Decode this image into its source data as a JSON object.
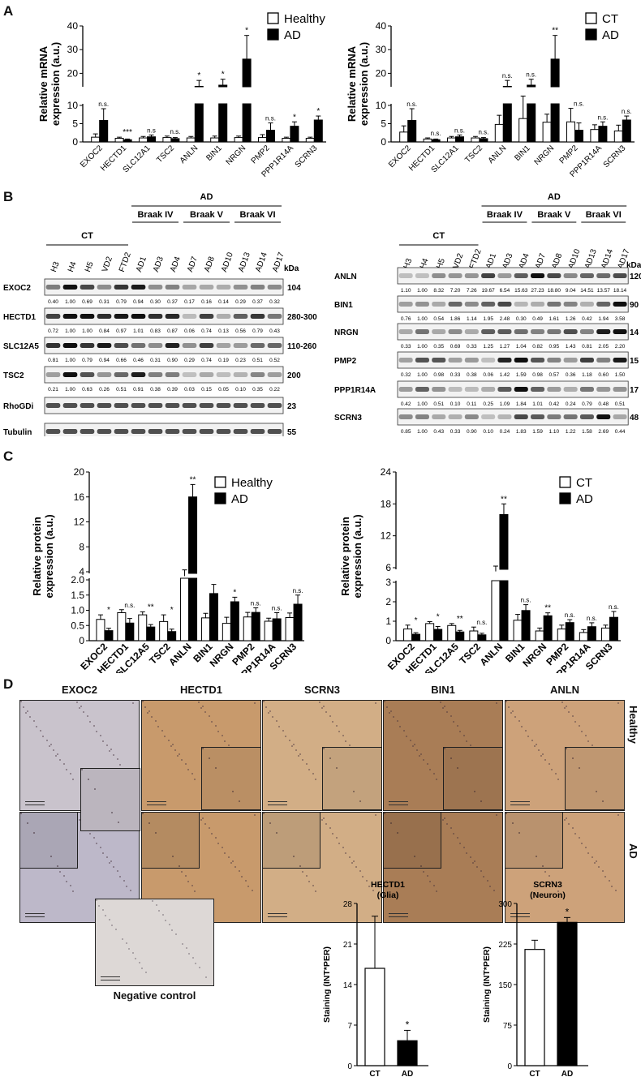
{
  "panels": {
    "A": "A",
    "B": "B",
    "C": "C",
    "D": "D"
  },
  "panelA_left": {
    "chart_data": {
      "type": "bar",
      "ylabel": "Relative mRNA expression (a.u.)",
      "yticks_low": [
        "0",
        "5",
        "10"
      ],
      "yticks_high": [
        "20",
        "30",
        "40"
      ],
      "categories": [
        "EXOC2",
        "HECTD1",
        "SLC12A1",
        "TSC2",
        "ANLN",
        "BIN1",
        "NRGN",
        "PMP2",
        "PPP1R14A",
        "SCRN3"
      ],
      "series": [
        {
          "name": "Healthy",
          "values": [
            1.3,
            1.0,
            1.1,
            1.2,
            1.1,
            1.1,
            1.2,
            1.2,
            1.0,
            1.0
          ],
          "errors": [
            0.9,
            0.3,
            0.4,
            0.4,
            0.4,
            0.5,
            0.4,
            0.8,
            0.3,
            0.3
          ]
        },
        {
          "name": "AD",
          "values": [
            5.9,
            0.6,
            1.4,
            0.9,
            14.5,
            15.0,
            26.0,
            3.2,
            4.3,
            6.0
          ],
          "errors": [
            3.2,
            0.2,
            0.5,
            0.3,
            2.5,
            2.5,
            10.0,
            2.0,
            1.2,
            1.1
          ]
        }
      ],
      "annotations": [
        "n.s.",
        "***",
        "n.s",
        "n.s.",
        "*",
        "*",
        "*",
        "n.s.",
        "*",
        "*"
      ]
    }
  },
  "panelA_right": {
    "chart_data": {
      "type": "bar",
      "ylabel": "Relative mRNA expression (a.u.)",
      "yticks_low": [
        "0",
        "5",
        "10"
      ],
      "yticks_high": [
        "20",
        "30",
        "40"
      ],
      "categories": [
        "EXOC2",
        "HECTD1",
        "SLC12A1",
        "TSC2",
        "ANLN",
        "BIN1",
        "NRGN",
        "PMP2",
        "PPP1R14A",
        "SCRN3"
      ],
      "series": [
        {
          "name": "CT",
          "values": [
            2.7,
            0.8,
            1.1,
            1.1,
            4.8,
            6.4,
            5.4,
            5.5,
            3.4,
            3.0
          ],
          "errors": [
            1.7,
            0.3,
            0.4,
            0.4,
            2.5,
            4.0,
            2.2,
            3.7,
            1.3,
            1.6
          ]
        },
        {
          "name": "AD",
          "values": [
            5.9,
            0.6,
            1.4,
            0.9,
            14.5,
            15.0,
            26.0,
            3.2,
            4.3,
            6.0
          ],
          "errors": [
            3.2,
            0.2,
            0.5,
            0.3,
            2.5,
            2.5,
            10.0,
            2.0,
            1.2,
            1.1
          ]
        }
      ],
      "annotations": [
        "n.s.",
        "n.s.",
        "n.s.",
        "n.s.",
        "n.s.",
        "n.s.",
        "**",
        "n.s.",
        "n.s.",
        "n.s."
      ]
    }
  },
  "panelB": {
    "group_ct": "CT",
    "group_ad": "AD",
    "braak": [
      "Braak IV",
      "Braak V",
      "Braak VI"
    ],
    "kda": "kDa",
    "left": {
      "lanes": [
        "H3",
        "H4",
        "H5",
        "VD2",
        "FTD2",
        "AD1",
        "AD3",
        "AD4",
        "AD7",
        "AD8",
        "AD10",
        "AD13",
        "AD14",
        "AD17"
      ],
      "blots": [
        {
          "name": "EXOC2",
          "kda": "104",
          "values": [
            "0.40",
            "1.00",
            "0.69",
            "0.31",
            "0.79",
            "0.94",
            "0.30",
            "0.37",
            "0.17",
            "0.16",
            "0.14",
            "0.29",
            "0.37",
            "0.32"
          ]
        },
        {
          "name": "HECTD1",
          "kda": "280-300",
          "values": [
            "0.72",
            "1.00",
            "1.00",
            "0.84",
            "0.97",
            "1.01",
            "0.83",
            "0.87",
            "0.06",
            "0.74",
            "0.13",
            "0.56",
            "0.79",
            "0.43"
          ]
        },
        {
          "name": "SLC12A5",
          "kda": "110-260",
          "values": [
            "0.81",
            "1.00",
            "0.79",
            "0.94",
            "0.66",
            "0.46",
            "0.31",
            "0.90",
            "0.29",
            "0.74",
            "0.19",
            "0.23",
            "0.51",
            "0.52"
          ]
        },
        {
          "name": "TSC2",
          "kda": "200",
          "values": [
            "0.21",
            "1.00",
            "0.63",
            "0.26",
            "0.51",
            "0.91",
            "0.38",
            "0.39",
            "0.03",
            "0.15",
            "0.05",
            "0.10",
            "0.35",
            "0.22"
          ]
        },
        {
          "name": "RhoGDi",
          "kda": "23",
          "values": []
        },
        {
          "name": "Tubulin",
          "kda": "55",
          "values": []
        }
      ]
    },
    "right": {
      "lanes": [
        "H3",
        "H4",
        "H5",
        "VD2",
        "FTD2",
        "AD1",
        "AD3",
        "AD4",
        "AD7",
        "AD8",
        "AD10",
        "AD13",
        "AD14",
        "AD17"
      ],
      "blots": [
        {
          "name": "ANLN",
          "kda": "120",
          "values": [
            "1.10",
            "1.00",
            "8.32",
            "7.20",
            "7.26",
            "19.67",
            "6.54",
            "15.63",
            "27.23",
            "18.80",
            "9.04",
            "14.51",
            "13.57",
            "18.14"
          ]
        },
        {
          "name": "BIN1",
          "kda": "90",
          "values": [
            "0.76",
            "1.00",
            "0.54",
            "1.86",
            "1.14",
            "1.95",
            "2.48",
            "0.30",
            "0.49",
            "1.61",
            "1.26",
            "0.42",
            "1.94",
            "3.58"
          ]
        },
        {
          "name": "NRGN",
          "kda": "14",
          "values": [
            "0.33",
            "1.00",
            "0.35",
            "0.69",
            "0.33",
            "1.25",
            "1.27",
            "1.04",
            "0.82",
            "0.95",
            "1.43",
            "0.81",
            "2.05",
            "2.20"
          ]
        },
        {
          "name": "PMP2",
          "kda": "15",
          "values": [
            "0.32",
            "1.00",
            "0.98",
            "0.33",
            "0.38",
            "0.06",
            "1.42",
            "1.59",
            "0.98",
            "0.57",
            "0.36",
            "1.18",
            "0.60",
            "1.50"
          ]
        },
        {
          "name": "PPP1R14A",
          "kda": "17",
          "values": [
            "0.42",
            "1.00",
            "0.51",
            "0.10",
            "0.11",
            "0.25",
            "1.09",
            "1.84",
            "1.01",
            "0.42",
            "0.24",
            "0.79",
            "0.48",
            "0.51"
          ]
        },
        {
          "name": "SCRN3",
          "kda": "48",
          "values": [
            "0.85",
            "1.00",
            "0.43",
            "0.33",
            "0.90",
            "0.10",
            "0.24",
            "1.83",
            "1.59",
            "1.10",
            "1.22",
            "1.58",
            "2.69",
            "0.44"
          ]
        }
      ]
    }
  },
  "panelC_left": {
    "chart_data": {
      "type": "bar",
      "ylabel": "Relative protein expression (a.u.)",
      "yticks_low": [
        "0",
        "0.5",
        "1.0",
        "1.5",
        "2.0"
      ],
      "yticks_high": [
        "4",
        "8",
        "12",
        "16",
        "20"
      ],
      "categories": [
        "EXOC2",
        "HECTD1",
        "SLC12A5",
        "TSC2",
        "ANLN",
        "BIN1",
        "NRGN",
        "PMP2",
        "PPP1R14A",
        "SCRN3"
      ],
      "series": [
        {
          "name": "Healthy",
          "values": [
            0.7,
            0.92,
            0.85,
            0.63,
            3.3,
            0.75,
            0.57,
            0.78,
            0.64,
            0.76
          ],
          "errors": [
            0.15,
            0.1,
            0.1,
            0.22,
            1.0,
            0.15,
            0.2,
            0.15,
            0.1,
            0.15
          ]
        },
        {
          "name": "AD",
          "values": [
            0.33,
            0.58,
            0.45,
            0.3,
            16.0,
            1.55,
            1.28,
            0.93,
            0.72,
            1.2
          ],
          "errors": [
            0.08,
            0.15,
            0.08,
            0.08,
            2.0,
            0.3,
            0.15,
            0.15,
            0.2,
            0.3
          ]
        }
      ],
      "annotations": [
        "*",
        "n.s.",
        "**",
        "*",
        "**",
        "",
        "*",
        "n.s.",
        "n.s.",
        "n.s."
      ]
    }
  },
  "panelC_right": {
    "chart_data": {
      "type": "bar",
      "ylabel": "Relative protein expression (a.u.)",
      "yticks_low": [
        "0",
        "1",
        "2",
        "3"
      ],
      "yticks_high": [
        "6",
        "12",
        "18",
        "24"
      ],
      "categories": [
        "EXOC2",
        "HECTD1",
        "SLC12A5",
        "TSC2",
        "ANLN",
        "BIN1",
        "NRGN",
        "PMP2",
        "PPP1R14A",
        "SCRN3"
      ],
      "series": [
        {
          "name": "CT",
          "values": [
            0.6,
            0.88,
            0.78,
            0.5,
            5.3,
            1.05,
            0.5,
            0.6,
            0.42,
            0.65
          ],
          "errors": [
            0.2,
            0.1,
            0.1,
            0.2,
            1.0,
            0.3,
            0.15,
            0.2,
            0.15,
            0.15
          ]
        },
        {
          "name": "AD",
          "values": [
            0.33,
            0.58,
            0.45,
            0.3,
            16.0,
            1.55,
            1.28,
            0.93,
            0.72,
            1.2
          ],
          "errors": [
            0.08,
            0.15,
            0.08,
            0.08,
            2.0,
            0.3,
            0.15,
            0.15,
            0.2,
            0.3
          ]
        }
      ],
      "annotations": [
        "*",
        "*",
        "**",
        "n.s.",
        "**",
        "n.s.",
        "**",
        "n.s.",
        "n.s.",
        "n.s."
      ]
    }
  },
  "panelD": {
    "stains": [
      "EXOC2",
      "HECTD1",
      "SCRN3",
      "BIN1",
      "ANLN"
    ],
    "row_healthy": "Healthy",
    "row_ad": "AD",
    "negative_control": "Negative control",
    "colors": {
      "exoc2": "#c9c3cc",
      "exoc2_ad": "#bdb8c9",
      "hectd1": "#c89a6c",
      "scrn3": "#d2ae86",
      "bin1": "#a97d56",
      "anln": "#cda27a",
      "negctrl": "#ddd8d6"
    }
  },
  "panelD_hectd1": {
    "chart_data": {
      "type": "bar",
      "title": "HECTD1\n(Glia)",
      "title_lines": [
        "HECTD1",
        "(Glia)"
      ],
      "ylabel": "Staining (INT*PER)",
      "yticks": [
        "0",
        "7",
        "14",
        "21",
        "28"
      ],
      "ylim": [
        0,
        28
      ],
      "categories": [
        "CT",
        "AD"
      ],
      "values": [
        16.8,
        4.3
      ],
      "errors": [
        9.0,
        1.8
      ],
      "annotations": [
        "",
        "*"
      ]
    }
  },
  "panelD_scrn3": {
    "chart_data": {
      "type": "bar",
      "title": "SCRN3\n(Neuron)",
      "title_lines": [
        "SCRN3",
        "(Neuron)"
      ],
      "ylabel": "Staining (INT*PER)",
      "yticks": [
        "0",
        "75",
        "150",
        "225",
        "300"
      ],
      "ylim": [
        0,
        300
      ],
      "categories": [
        "CT",
        "AD"
      ],
      "values": [
        215,
        265
      ],
      "errors": [
        17,
        9
      ],
      "annotations": [
        "",
        "*"
      ]
    }
  }
}
